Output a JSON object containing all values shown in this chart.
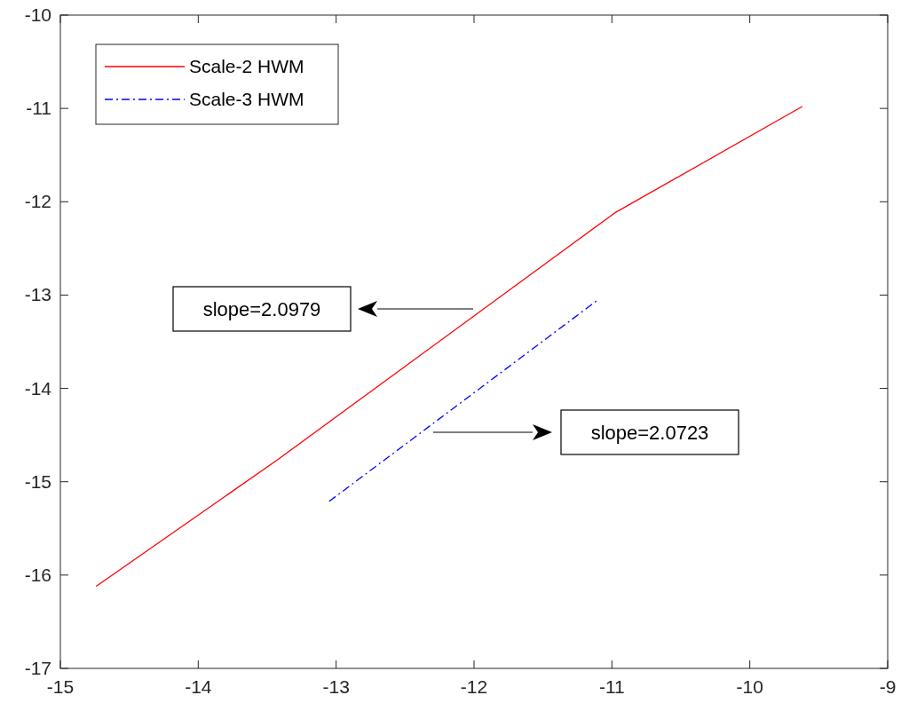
{
  "chart_data": {
    "type": "line",
    "xlim": [
      -15,
      -9
    ],
    "ylim": [
      -17,
      -10
    ],
    "xticks": [
      -15,
      -14,
      -13,
      -12,
      -11,
      -10,
      -9
    ],
    "yticks": [
      -17,
      -16,
      -15,
      -14,
      -13,
      -12,
      -11,
      -10
    ],
    "grid": false,
    "legend": "top left",
    "series": [
      {
        "name": "Scale-2 HWM",
        "color": "#ff0000",
        "line_style": "solid",
        "x": [
          -14.74,
          -13.43,
          -10.98,
          -9.62
        ],
        "values": [
          -16.12,
          -14.77,
          -12.12,
          -10.98
        ]
      },
      {
        "name": "Scale-3 HWM",
        "color": "#0000ff",
        "line_style": "dashed",
        "x": [
          -13.05,
          -11.1
        ],
        "values": [
          -15.21,
          -13.05
        ]
      }
    ],
    "annotations": [
      "slope=2.0979",
      "slope=2.0723"
    ]
  }
}
